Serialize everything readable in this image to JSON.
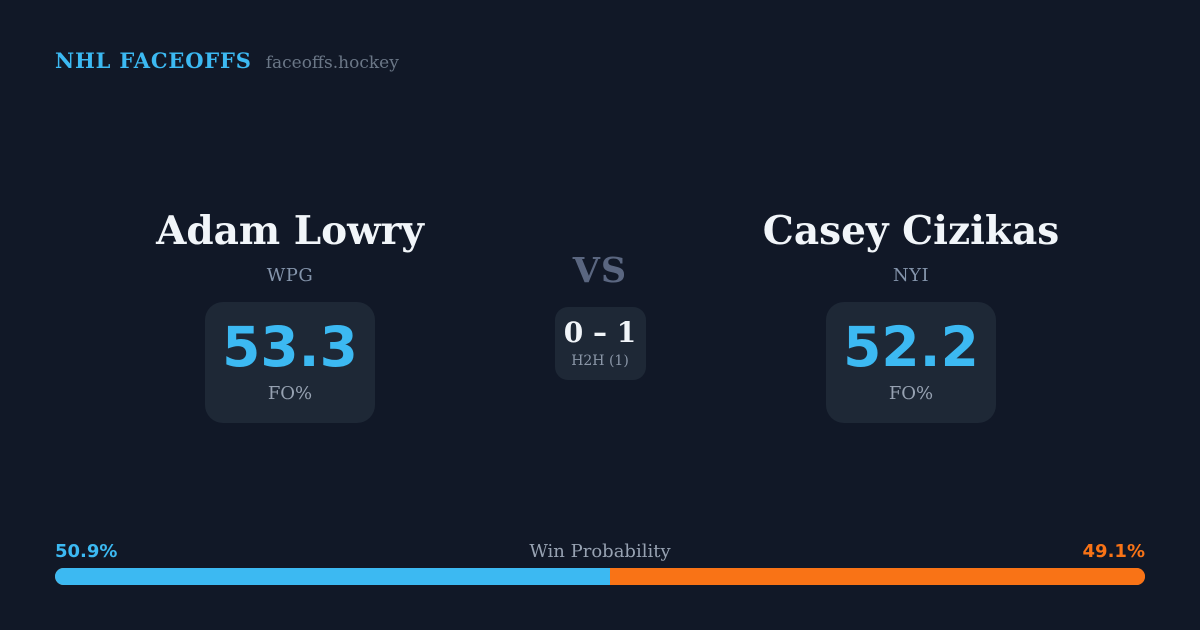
{
  "brand": {
    "title": "NHL FACEOFFS",
    "domain": "faceoffs.hockey"
  },
  "players": [
    {
      "name": "Adam Lowry",
      "team": "WPG",
      "stat_value": "53.3",
      "stat_label": "FO%"
    },
    {
      "name": "Casey Cizikas",
      "team": "NYI",
      "stat_value": "52.2",
      "stat_label": "FO%"
    }
  ],
  "matchup": {
    "vs_label": "VS",
    "h2h_score": "0 – 1",
    "h2h_label": "H2H (1)"
  },
  "win_probability": {
    "label": "Win Probability",
    "left_pct": "50.9%",
    "right_pct": "49.1%",
    "left_value": 50.9,
    "right_value": 49.1
  },
  "colors": {
    "background": "#111827",
    "card": "#1e2836",
    "accent_blue": "#3cb9f2",
    "accent_orange": "#f97316",
    "text_primary": "#f1f5f9",
    "text_muted": "#8b98ab"
  }
}
